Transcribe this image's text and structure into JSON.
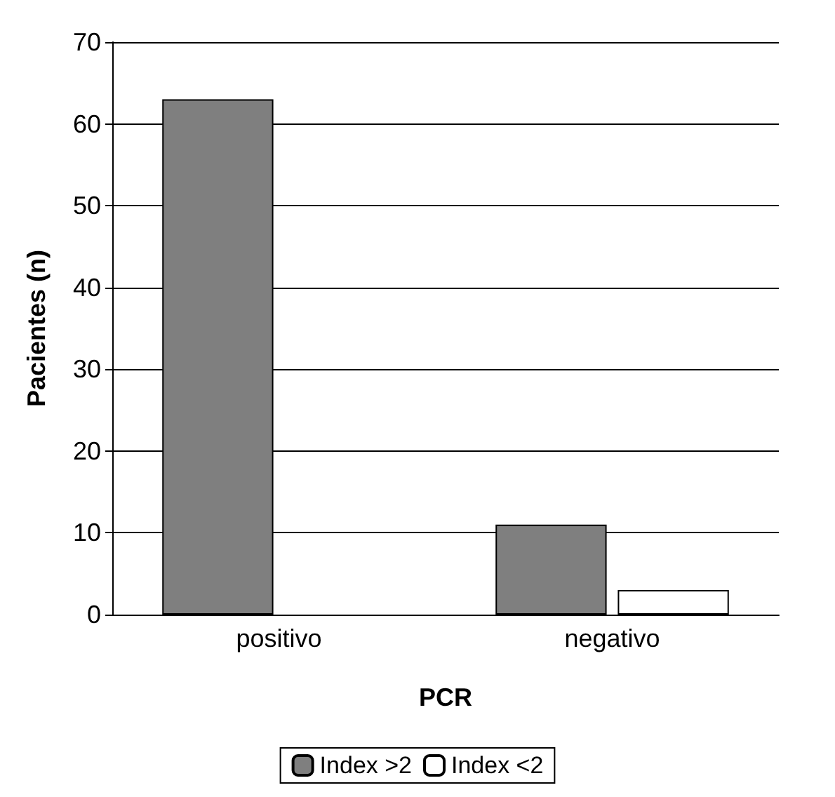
{
  "chart_data": {
    "type": "bar",
    "xlabel": "PCR",
    "ylabel": "Pacientes (n)",
    "categories": [
      "positivo",
      "negativo"
    ],
    "series": [
      {
        "name": "Index >2",
        "color": "#7f7f7f",
        "values": [
          63,
          11
        ]
      },
      {
        "name": "Index <2",
        "color": "#ffffff",
        "values": [
          0,
          3
        ]
      }
    ],
    "ylim": [
      0,
      70
    ],
    "yticks": [
      0,
      10,
      20,
      30,
      40,
      50,
      60,
      70
    ],
    "grid": "y",
    "legend": "bottom"
  }
}
